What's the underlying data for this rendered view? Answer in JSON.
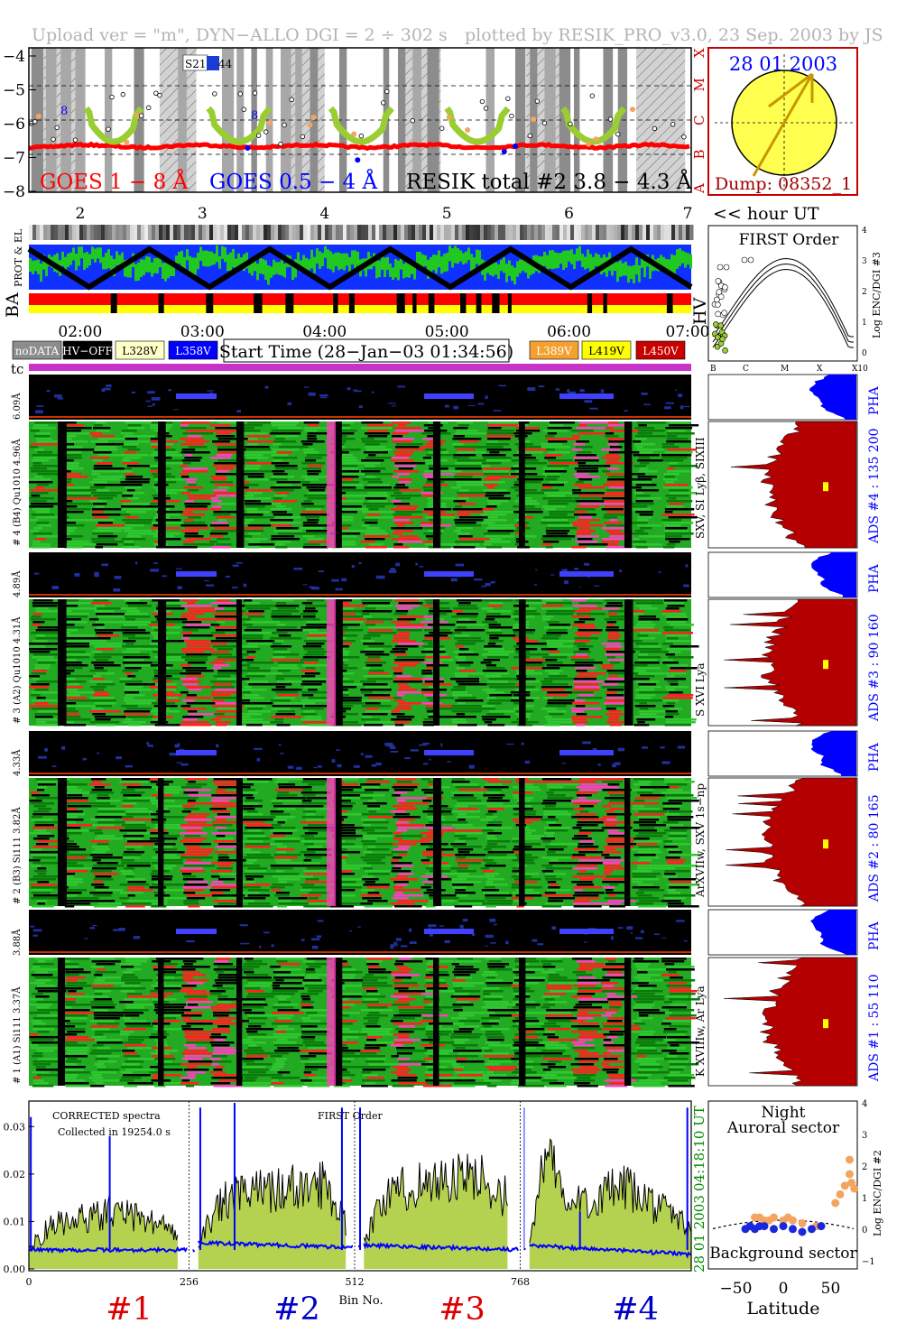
{
  "header": {
    "left": "Upload ver = \"m\", DYN−ALLO DGI =   2 ÷ 302 s",
    "right": "plotted by RESIK_PRO_v3.0, 23 Sep. 2003 by JS"
  },
  "lightcurve": {
    "y_ticks": [
      "−4",
      "−5",
      "−6",
      "−7",
      "−8"
    ],
    "class_letters": [
      "X",
      "M",
      "C",
      "B",
      "A"
    ],
    "x_ticks": [
      "2",
      "3",
      "4",
      "5",
      "6",
      "7"
    ],
    "x_unit": "<< hour UT",
    "legend": [
      "GOES 1 − 8 Å",
      "GOES 0.5 − 4 Å",
      "RESIK total #2  3.8 − 4.3 Å"
    ],
    "box_label": "S21",
    "box_label2": "44",
    "marker_labels": [
      "8",
      "8"
    ],
    "colors": {
      "goes_long": "#ff0000",
      "goes_short": "#0000ff",
      "resik": "#000000",
      "green_pts": "#9acd32",
      "orange_pts": "#f4a460"
    }
  },
  "sun": {
    "date": "28 01 2003",
    "dump": "Dump: 08352_1"
  },
  "status": {
    "left_labels": [
      "PROT & EL",
      "BA"
    ],
    "right_label": "HV",
    "time_ticks": [
      "02:00",
      "03:00",
      "04:00",
      "05:00",
      "06:00",
      "07:00"
    ]
  },
  "legend_row": {
    "left_items": [
      {
        "label": "noDATA",
        "color": "#8c8c8c",
        "text": "#ffffff"
      },
      {
        "label": "HV−OFF",
        "color": "#000000",
        "text": "#ffffff"
      },
      {
        "label": "L328V",
        "color": "#ffffc8",
        "text": "#000000"
      },
      {
        "label": "L358V",
        "color": "#0000ff",
        "text": "#ffffff"
      }
    ],
    "start_time": "Start Time (28−Jan−03 01:34:56)",
    "right_items": [
      {
        "label": "L389V",
        "color": "#f4a030",
        "text": "#ffffff"
      },
      {
        "label": "L419V",
        "color": "#ffff00",
        "text": "#000000"
      },
      {
        "label": "L450V",
        "color": "#c80000",
        "text": "#ffffff"
      }
    ]
  },
  "first_order": {
    "title": "FIRST Order",
    "axis_label": "Log ENC/DGI #3",
    "y_ticks": [
      "4",
      "3",
      "2",
      "1",
      "0"
    ],
    "x_ticks": [
      "B",
      "C",
      "M",
      "X",
      "X10"
    ]
  },
  "tc_label": "tc",
  "channels": [
    {
      "pha_label": "6.09Å",
      "spec_label": "# 4 (B4) Qu1010  4.96Å",
      "lines": "SXV, SI Lyβ, SIXIII",
      "ads": "ADS #4 :   135 200"
    },
    {
      "pha_label": "4.89Å",
      "spec_label": "# 3 (A2) Qu1010  4.31Å",
      "lines": "S XVI Lya",
      "ads": "ADS #3 :   90 160"
    },
    {
      "pha_label": "4.33Å",
      "spec_label": "# 2 (B3) Si111  3.82Å",
      "lines": "ArXVIIw, SXV 1s−np",
      "ads": "ADS #2 :   80 165"
    },
    {
      "pha_label": "3.88Å",
      "spec_label": "# 1 (A1) Si111  3.37Å",
      "lines": "K XVIIIw, Ar Lya",
      "ads": "ADS #1 :   55 110"
    }
  ],
  "pha_text": "PHA",
  "spectrum": {
    "label1": "CORRECTED spectra",
    "label2": "Collected in 19254.0 s",
    "label3": "FIRST Order",
    "time_stamp": "04:18:10 UT",
    "date_stamp": "28 01 2003",
    "y_ticks": [
      "0.03",
      "0.02",
      "0.01",
      "0.00"
    ],
    "x_ticks": [
      "0",
      "256",
      "512",
      "768"
    ],
    "x_label": "Bin No.",
    "channel_labels": [
      {
        "label": "#1",
        "color": "#dc0000"
      },
      {
        "label": "#2",
        "color": "#0000c8"
      },
      {
        "label": "#3",
        "color": "#dc0000"
      },
      {
        "label": "#4",
        "color": "#0000c8"
      }
    ]
  },
  "latitude": {
    "title1": "Night",
    "title2": "Auroral sector",
    "bottom": "Background sector",
    "x_ticks": [
      "−50",
      "0",
      "50"
    ],
    "x_label": "Latitude",
    "y_label": "Log ENC/DGI #2",
    "y_ticks": [
      "4",
      "3",
      "2",
      "1",
      "0",
      "−1"
    ]
  },
  "chart_data": {
    "type": "line",
    "title": "",
    "xlabel": "Bin No.",
    "ylabel": "",
    "xlim": [
      0,
      1024
    ],
    "ylim": [
      0.0,
      0.035
    ],
    "x_ticks": [
      0,
      256,
      512,
      768
    ],
    "series": [
      {
        "name": "CORRECTED spectra",
        "segments": [
          {
            "x": [
              0,
              32,
              64,
              96,
              128,
              160,
              192,
              230
            ],
            "y": [
              0.004,
              0.009,
              0.01,
              0.011,
              0.012,
              0.011,
              0.01,
              0.008
            ]
          },
          {
            "x": [
              262,
              300,
              340,
              380,
              420,
              460,
              490
            ],
            "y": [
              0.006,
              0.014,
              0.016,
              0.017,
              0.017,
              0.018,
              0.01
            ]
          },
          {
            "x": [
              518,
              550,
              600,
              650,
              700,
              740
            ],
            "y": [
              0.006,
              0.015,
              0.018,
              0.019,
              0.019,
              0.015
            ]
          },
          {
            "x": [
              774,
              800,
              830,
              870,
              920,
              960,
              1000,
              1024
            ],
            "y": [
              0.005,
              0.026,
              0.013,
              0.015,
              0.017,
              0.014,
              0.011,
              0.008
            ]
          }
        ]
      },
      {
        "name": "background",
        "segments": [
          {
            "x": [
              0,
              256
            ],
            "y": [
              0.004,
              0.004
            ]
          },
          {
            "x": [
              262,
              512
            ],
            "y": [
              0.0055,
              0.0045
            ]
          },
          {
            "x": [
              518,
              768
            ],
            "y": [
              0.005,
              0.004
            ]
          },
          {
            "x": [
              774,
              1024
            ],
            "y": [
              0.005,
              0.003
            ]
          }
        ]
      }
    ],
    "latitude_points": {
      "orange": {
        "x": [
          -30,
          -25,
          -20,
          -15,
          -10,
          0,
          5,
          10,
          20,
          35,
          55,
          60,
          65,
          70,
          70,
          72,
          75
        ],
        "y": [
          0.5,
          0.5,
          0.4,
          0.4,
          0.5,
          0.4,
          0.5,
          0.4,
          0.3,
          0.2,
          1.0,
          1.3,
          1.6,
          2.0,
          2.5,
          1.7,
          1.5
        ]
      },
      "blue": {
        "x": [
          -40,
          -35,
          -30,
          -25,
          -20,
          -10,
          0,
          10,
          20,
          30,
          40
        ],
        "y": [
          0.1,
          0.2,
          0.1,
          0.2,
          0.2,
          0.1,
          0.2,
          0.1,
          0.0,
          0.1,
          0.2
        ]
      }
    },
    "lightcurve_days_hours": [
      1.58,
      7.0
    ]
  }
}
